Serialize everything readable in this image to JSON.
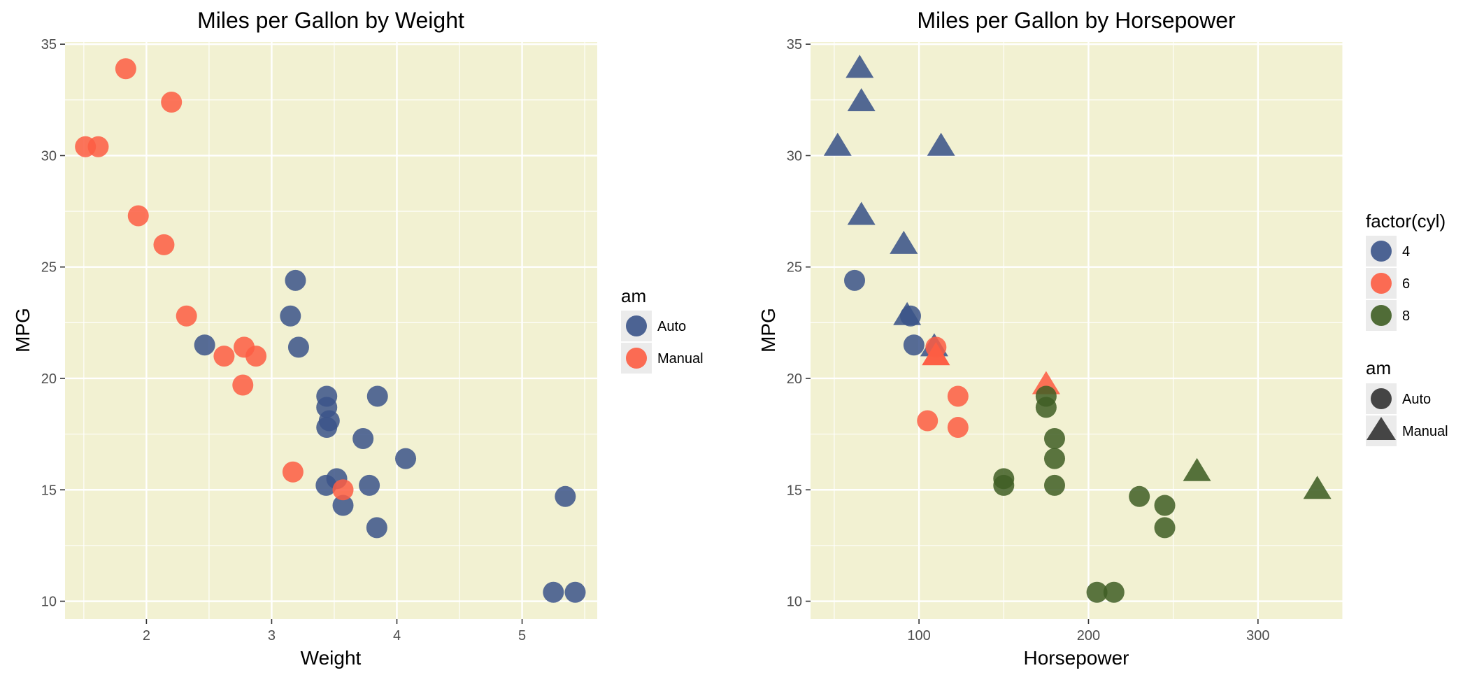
{
  "colors": {
    "panel_bg": "#F2F1D2",
    "legend_key_bg": "#EBEBEB",
    "auto": "#3B5489",
    "manual": "#FD5D43",
    "cyl4": "#3B5489",
    "cyl6": "#FD5D43",
    "cyl8": "#3F5E24",
    "shape_key": "#333333"
  },
  "chart_data": [
    {
      "type": "scatter",
      "title": "Miles per Gallon by Weight",
      "xlabel": "Weight",
      "ylabel": "MPG",
      "xlim": [
        1.35,
        5.6
      ],
      "ylim": [
        9.2,
        35.1
      ],
      "xticks": [
        2,
        3,
        4,
        5
      ],
      "yticks": [
        10,
        15,
        20,
        25,
        30,
        35
      ],
      "grid": true,
      "legend": {
        "title": "am",
        "placement": "right",
        "entries": [
          {
            "label": "Auto",
            "color_key": "auto",
            "shape": "circle"
          },
          {
            "label": "Manual",
            "color_key": "manual",
            "shape": "circle"
          }
        ]
      },
      "series": [
        {
          "name": "Auto",
          "color_key": "auto",
          "points": [
            {
              "x": 3.215,
              "y": 21.4
            },
            {
              "x": 3.44,
              "y": 18.7
            },
            {
              "x": 3.46,
              "y": 18.1
            },
            {
              "x": 3.57,
              "y": 14.3
            },
            {
              "x": 3.19,
              "y": 24.4
            },
            {
              "x": 3.15,
              "y": 22.8
            },
            {
              "x": 3.44,
              "y": 19.2
            },
            {
              "x": 3.44,
              "y": 17.8
            },
            {
              "x": 4.07,
              "y": 16.4
            },
            {
              "x": 3.73,
              "y": 17.3
            },
            {
              "x": 3.78,
              "y": 15.2
            },
            {
              "x": 5.25,
              "y": 10.4
            },
            {
              "x": 5.424,
              "y": 10.4
            },
            {
              "x": 5.345,
              "y": 14.7
            },
            {
              "x": 2.465,
              "y": 21.5
            },
            {
              "x": 3.52,
              "y": 15.5
            },
            {
              "x": 3.435,
              "y": 15.2
            },
            {
              "x": 3.84,
              "y": 13.3
            },
            {
              "x": 3.845,
              "y": 19.2
            }
          ]
        },
        {
          "name": "Manual",
          "color_key": "manual",
          "points": [
            {
              "x": 2.62,
              "y": 21.0
            },
            {
              "x": 2.875,
              "y": 21.0
            },
            {
              "x": 2.32,
              "y": 22.8
            },
            {
              "x": 2.2,
              "y": 32.4
            },
            {
              "x": 1.615,
              "y": 30.4
            },
            {
              "x": 1.835,
              "y": 33.9
            },
            {
              "x": 1.935,
              "y": 27.3
            },
            {
              "x": 2.14,
              "y": 26.0
            },
            {
              "x": 1.513,
              "y": 30.4
            },
            {
              "x": 3.17,
              "y": 15.8
            },
            {
              "x": 2.77,
              "y": 19.7
            },
            {
              "x": 3.57,
              "y": 15.0
            },
            {
              "x": 2.78,
              "y": 21.4
            }
          ]
        }
      ]
    },
    {
      "type": "scatter",
      "title": "Miles per Gallon by Horsepower",
      "xlabel": "Horsepower",
      "ylabel": "MPG",
      "xlim": [
        36,
        350
      ],
      "ylim": [
        9.2,
        35.1
      ],
      "xticks": [
        100,
        200,
        300
      ],
      "yticks": [
        10,
        15,
        20,
        25,
        30,
        35
      ],
      "grid": true,
      "legends": [
        {
          "title": "factor(cyl)",
          "placement": "right",
          "entries": [
            {
              "label": "4",
              "color_key": "cyl4",
              "shape": "circle"
            },
            {
              "label": "6",
              "color_key": "cyl6",
              "shape": "circle"
            },
            {
              "label": "8",
              "color_key": "cyl8",
              "shape": "circle"
            }
          ]
        },
        {
          "title": "am",
          "placement": "right",
          "entries": [
            {
              "label": "Auto",
              "color_key": "shape_key",
              "shape": "circle"
            },
            {
              "label": "Manual",
              "color_key": "shape_key",
              "shape": "triangle"
            }
          ]
        }
      ],
      "points": [
        {
          "x": 62,
          "y": 24.4,
          "cyl": 4,
          "am": "Auto"
        },
        {
          "x": 95,
          "y": 22.8,
          "cyl": 4,
          "am": "Auto"
        },
        {
          "x": 97,
          "y": 21.5,
          "cyl": 4,
          "am": "Auto"
        },
        {
          "x": 93,
          "y": 22.8,
          "cyl": 4,
          "am": "Manual"
        },
        {
          "x": 66,
          "y": 32.4,
          "cyl": 4,
          "am": "Manual"
        },
        {
          "x": 52,
          "y": 30.4,
          "cyl": 4,
          "am": "Manual"
        },
        {
          "x": 65,
          "y": 33.9,
          "cyl": 4,
          "am": "Manual"
        },
        {
          "x": 66,
          "y": 27.3,
          "cyl": 4,
          "am": "Manual"
        },
        {
          "x": 91,
          "y": 26.0,
          "cyl": 4,
          "am": "Manual"
        },
        {
          "x": 113,
          "y": 30.4,
          "cyl": 4,
          "am": "Manual"
        },
        {
          "x": 109,
          "y": 21.4,
          "cyl": 4,
          "am": "Manual"
        },
        {
          "x": 110,
          "y": 21.4,
          "cyl": 6,
          "am": "Auto"
        },
        {
          "x": 105,
          "y": 18.1,
          "cyl": 6,
          "am": "Auto"
        },
        {
          "x": 123,
          "y": 19.2,
          "cyl": 6,
          "am": "Auto"
        },
        {
          "x": 123,
          "y": 17.8,
          "cyl": 6,
          "am": "Auto"
        },
        {
          "x": 110,
          "y": 21.0,
          "cyl": 6,
          "am": "Manual"
        },
        {
          "x": 110,
          "y": 21.0,
          "cyl": 6,
          "am": "Manual"
        },
        {
          "x": 175,
          "y": 19.7,
          "cyl": 6,
          "am": "Manual"
        },
        {
          "x": 175,
          "y": 18.7,
          "cyl": 8,
          "am": "Auto"
        },
        {
          "x": 245,
          "y": 14.3,
          "cyl": 8,
          "am": "Auto"
        },
        {
          "x": 180,
          "y": 16.4,
          "cyl": 8,
          "am": "Auto"
        },
        {
          "x": 180,
          "y": 17.3,
          "cyl": 8,
          "am": "Auto"
        },
        {
          "x": 180,
          "y": 15.2,
          "cyl": 8,
          "am": "Auto"
        },
        {
          "x": 205,
          "y": 10.4,
          "cyl": 8,
          "am": "Auto"
        },
        {
          "x": 215,
          "y": 10.4,
          "cyl": 8,
          "am": "Auto"
        },
        {
          "x": 230,
          "y": 14.7,
          "cyl": 8,
          "am": "Auto"
        },
        {
          "x": 150,
          "y": 15.5,
          "cyl": 8,
          "am": "Auto"
        },
        {
          "x": 150,
          "y": 15.2,
          "cyl": 8,
          "am": "Auto"
        },
        {
          "x": 245,
          "y": 13.3,
          "cyl": 8,
          "am": "Auto"
        },
        {
          "x": 175,
          "y": 19.2,
          "cyl": 8,
          "am": "Auto"
        },
        {
          "x": 264,
          "y": 15.8,
          "cyl": 8,
          "am": "Manual"
        },
        {
          "x": 335,
          "y": 15.0,
          "cyl": 8,
          "am": "Manual"
        }
      ]
    }
  ]
}
